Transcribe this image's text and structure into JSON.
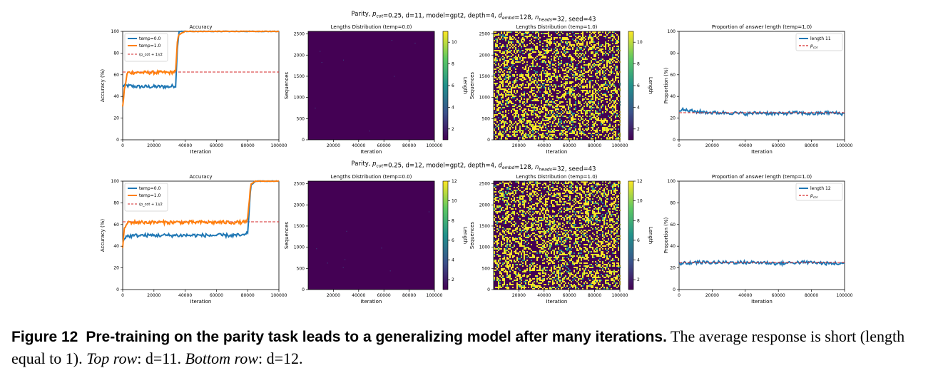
{
  "colors": {
    "temp0": "#1f77b4",
    "temp1": "#ff7f0e",
    "ref": "#d62728",
    "heat_low": "#440154",
    "heat_mid": "#21918c",
    "heat_high": "#fde725"
  },
  "rows": [
    {
      "suptitle": "Parity, p_cot=0.25, d=11, model=gpt2, depth=4, d_embd=128, n_heads=32, seed=43",
      "accuracy_title": "Accuracy",
      "heat0_title": "Lengths Distribution (temp=0.0)",
      "heat1_title": "Lengths Distribution (temp=1.0)",
      "prop_title": "Proportion of answer length (temp=1.0)",
      "prop_legend": "length 11",
      "colorbar_ticks": [
        "2",
        "4",
        "6",
        "8",
        "10"
      ]
    },
    {
      "suptitle": "Parity, p_cot=0.25, d=12, model=gpt2, depth=4, d_embd=128, n_heads=32, seed=43",
      "accuracy_title": "Accuracy",
      "heat0_title": "Lengths Distribution (temp=0.0)",
      "heat1_title": "Lengths Distribution (temp=1.0)",
      "prop_title": "Proportion of answer length (temp=1.0)",
      "prop_legend": "length 12",
      "colorbar_ticks": [
        "2",
        "4",
        "6",
        "8",
        "10",
        "12"
      ]
    }
  ],
  "axis_text": {
    "iteration": "Iteration",
    "accuracy": "Accuracy (%)",
    "sequences": "Sequences",
    "length": "Length",
    "proportion": "Proportion (%)",
    "legend_temp0": "temp=0.0",
    "legend_temp1": "temp=1.0",
    "legend_pcor": "p_cor",
    "legend_ref": "(p_cot + 1)/2",
    "x_ticks": [
      "0",
      "20000",
      "40000",
      "60000",
      "80000",
      "100000"
    ],
    "heat_x_ticks": [
      "20000",
      "40000",
      "60000",
      "80000",
      "100000"
    ],
    "y_ticks_pct": [
      "0",
      "20",
      "40",
      "60",
      "80",
      "100"
    ],
    "y_ticks_seq": [
      "0",
      "500",
      "1000",
      "1500",
      "2000",
      "2500"
    ]
  },
  "chart_data": [
    {
      "type": "line",
      "title": "Accuracy",
      "xlabel": "Iteration",
      "ylabel": "Accuracy (%)",
      "xlim": [
        0,
        100000
      ],
      "ylim": [
        0,
        100
      ],
      "reference_line": 62.5,
      "series": [
        {
          "name": "temp=0.0",
          "x": [
            0,
            2000,
            10000,
            20000,
            30000,
            34000,
            35000,
            36000,
            40000,
            100000
          ],
          "y": [
            50,
            50,
            49,
            49,
            49,
            50,
            85,
            100,
            100,
            100
          ]
        },
        {
          "name": "temp=1.0",
          "x": [
            0,
            1000,
            3000,
            10000,
            20000,
            30000,
            34000,
            35000,
            36000,
            40000,
            100000
          ],
          "y": [
            30,
            45,
            62,
            62,
            62,
            62,
            63,
            90,
            97,
            100,
            100
          ]
        }
      ]
    },
    {
      "type": "heatmap",
      "title": "Lengths Distribution (temp=0.0)",
      "xlabel": "Iteration",
      "ylabel": "Sequences",
      "xlim": [
        0,
        100000
      ],
      "ylim": [
        0,
        2560
      ],
      "colorbar_label": "Length",
      "colorbar_range": [
        1,
        11
      ],
      "description_value": "nearly uniform length 1"
    },
    {
      "type": "heatmap",
      "title": "Lengths Distribution (temp=1.0)",
      "xlabel": "Iteration",
      "ylabel": "Sequences",
      "xlim": [
        0,
        100000
      ],
      "ylim": [
        0,
        2560
      ],
      "colorbar_label": "Length",
      "colorbar_range": [
        1,
        11
      ],
      "description_value": "mixed lengths 1 and 11"
    },
    {
      "type": "line",
      "title": "Proportion of answer length (temp=1.0)",
      "xlabel": "Iteration",
      "ylabel": "Proportion (%)",
      "xlim": [
        0,
        100000
      ],
      "ylim": [
        0,
        100
      ],
      "reference_line": 25,
      "series": [
        {
          "name": "length 11",
          "x": [
            0,
            10000,
            20000,
            30000,
            40000,
            50000,
            60000,
            70000,
            80000,
            90000,
            100000
          ],
          "y": [
            28,
            26,
            25,
            25,
            24,
            25,
            24,
            25,
            24,
            25,
            24
          ]
        }
      ]
    },
    {
      "type": "line",
      "title": "Accuracy",
      "xlabel": "Iteration",
      "ylabel": "Accuracy (%)",
      "xlim": [
        0,
        100000
      ],
      "ylim": [
        0,
        100
      ],
      "reference_line": 62.5,
      "series": [
        {
          "name": "temp=0.0",
          "x": [
            0,
            2000,
            10000,
            20000,
            40000,
            60000,
            78000,
            80000,
            82000,
            85000,
            100000
          ],
          "y": [
            45,
            49,
            50,
            50,
            50,
            50,
            50,
            52,
            96,
            100,
            100
          ]
        },
        {
          "name": "temp=1.0",
          "x": [
            0,
            1000,
            3000,
            10000,
            20000,
            40000,
            60000,
            78000,
            80000,
            82000,
            85000,
            100000
          ],
          "y": [
            38,
            55,
            62,
            62,
            62,
            62,
            62,
            62,
            65,
            97,
            100,
            100
          ]
        }
      ]
    },
    {
      "type": "heatmap",
      "title": "Lengths Distribution (temp=0.0)",
      "xlabel": "Iteration",
      "ylabel": "Sequences",
      "xlim": [
        0,
        100000
      ],
      "ylim": [
        0,
        2560
      ],
      "colorbar_label": "Length",
      "colorbar_range": [
        1,
        12
      ],
      "description_value": "nearly uniform length 1"
    },
    {
      "type": "heatmap",
      "title": "Lengths Distribution (temp=1.0)",
      "xlabel": "Iteration",
      "ylabel": "Sequences",
      "xlim": [
        0,
        100000
      ],
      "ylim": [
        0,
        2560
      ],
      "colorbar_label": "Length",
      "colorbar_range": [
        1,
        12
      ],
      "description_value": "mixed lengths 1 and 12"
    },
    {
      "type": "line",
      "title": "Proportion of answer length (temp=1.0)",
      "xlabel": "Iteration",
      "ylabel": "Proportion (%)",
      "xlim": [
        0,
        100000
      ],
      "ylim": [
        0,
        100
      ],
      "reference_line": 25,
      "series": [
        {
          "name": "length 12",
          "x": [
            0,
            10000,
            20000,
            30000,
            40000,
            50000,
            60000,
            70000,
            80000,
            90000,
            100000
          ],
          "y": [
            24,
            25,
            25,
            25,
            25,
            25,
            24,
            25,
            25,
            24,
            24
          ]
        }
      ]
    }
  ],
  "caption": {
    "label": "Figure 12",
    "bold_text": "Pre-training on the parity task leads to a generalizing model after many iterations.",
    "text": "The average response is short (length equal to 1).",
    "top_row_label": "Top row",
    "top_row_value": "d=11.",
    "bottom_row_label": "Bottom row",
    "bottom_row_value": "d=12."
  }
}
